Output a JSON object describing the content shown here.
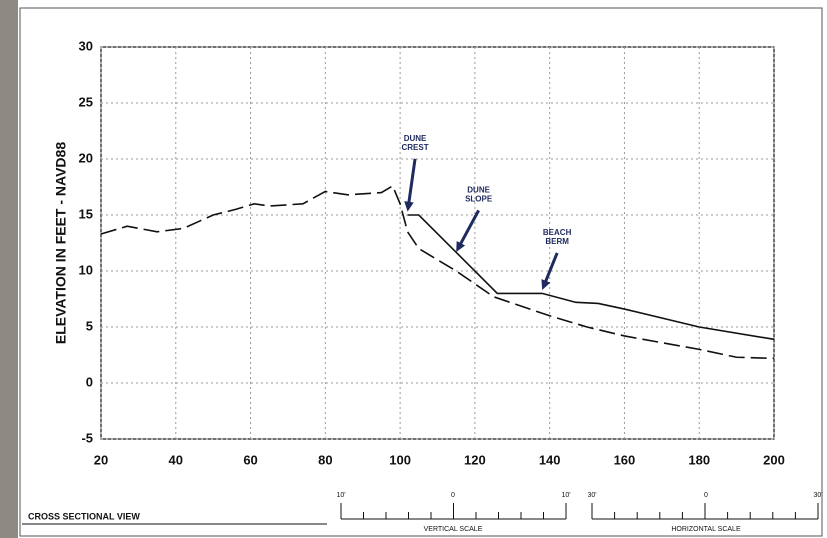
{
  "chart_data": {
    "type": "line",
    "ylabel": "ELEVATION IN FEET - NAVD88",
    "xlim": [
      20,
      200
    ],
    "xticks": [
      20,
      40,
      60,
      80,
      100,
      120,
      140,
      160,
      180,
      200
    ],
    "ylim": [
      -5,
      30
    ],
    "yticks": [
      -5,
      0,
      5,
      10,
      15,
      20,
      25,
      30
    ],
    "grid": true,
    "series": [
      {
        "style": "dashed",
        "color": "#111111",
        "x": [
          20,
          27,
          35,
          42,
          50,
          56,
          61,
          65,
          74,
          80,
          86,
          95,
          98,
          100,
          102,
          105,
          115,
          125,
          140,
          150,
          160,
          180,
          190,
          200
        ],
        "values": [
          13.3,
          14,
          13.5,
          13.8,
          15,
          15.5,
          16,
          15.8,
          16,
          17.1,
          16.8,
          17,
          17.6,
          16,
          13.5,
          12,
          10,
          7.7,
          6,
          5,
          4.2,
          3,
          2.3,
          2.2
        ]
      },
      {
        "style": "solid",
        "color": "#111111",
        "x": [
          102,
          105,
          126,
          138,
          147,
          153,
          160,
          180,
          200
        ],
        "values": [
          15,
          15,
          8,
          8,
          7.2,
          7.1,
          6.6,
          5,
          3.9
        ]
      }
    ],
    "annotations": [
      {
        "lines": [
          "DUNE",
          "CREST"
        ],
        "xytext": [
          104,
          21.8
        ],
        "xy": [
          102,
          15.3
        ],
        "color": "#1f2a5e"
      },
      {
        "lines": [
          "DUNE",
          "SLOPE"
        ],
        "xytext": [
          121,
          17.2
        ],
        "xy": [
          115,
          11.7
        ],
        "color": "#1f2a5e"
      },
      {
        "lines": [
          "BEACH",
          "BERM"
        ],
        "xytext": [
          142,
          13.4
        ],
        "xy": [
          138,
          8.3
        ],
        "color": "#1f2a5e"
      }
    ]
  },
  "footer": {
    "title": "CROSS SECTIONAL VIEW",
    "vertical_scale": {
      "left": "10'",
      "mid": "0",
      "right": "10'",
      "label": "VERTICAL SCALE"
    },
    "horizontal_scale": {
      "left": "30'",
      "mid": "0",
      "right": "30'",
      "label": "HORIZONTAL SCALE"
    }
  }
}
